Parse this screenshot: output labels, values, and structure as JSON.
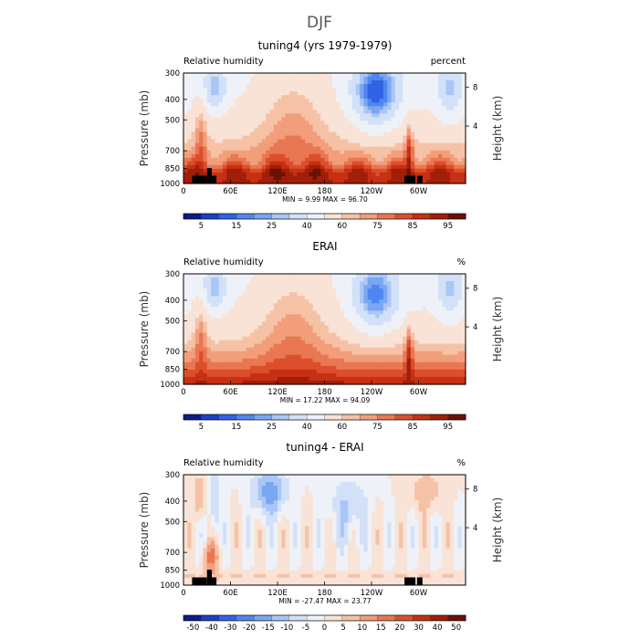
{
  "figure": {
    "title": "DJF"
  },
  "colors": {
    "rh_palette": [
      "#0a1c88",
      "#1d3fc6",
      "#2f63e4",
      "#4f86f0",
      "#7aa6f2",
      "#a9c6f6",
      "#d2e1f8",
      "#eef2f8",
      "#f8e3d6",
      "#f6c2a6",
      "#f29e7b",
      "#e97752",
      "#dc4f2c",
      "#c73012",
      "#a11e08",
      "#6c1003"
    ],
    "diff_palette": [
      "#0a1c88",
      "#1d3fc6",
      "#2f63e4",
      "#4f86f0",
      "#7aa6f2",
      "#a9c6f6",
      "#d2e1f8",
      "#eef2f8",
      "#f8e3d6",
      "#f6c2a6",
      "#f29e7b",
      "#e97752",
      "#dc4f2c",
      "#c73012",
      "#a11e08",
      "#6c1003"
    ],
    "land": "#000000"
  },
  "chart_data": [
    {
      "type": "heatmap",
      "title": "tuning4 (yrs 1979-1979)",
      "left_label": "Relative humidity",
      "right_label": "percent",
      "xlabel": "",
      "ylabel": "Pressure (mb)",
      "y2label": "Height (km)",
      "x_ticks": [
        "0",
        "60E",
        "120E",
        "180",
        "120W",
        "60W"
      ],
      "x_tick_lon": [
        0,
        60,
        120,
        180,
        240,
        300
      ],
      "xlim": [
        0,
        360
      ],
      "y_ticks": [
        300,
        400,
        500,
        700,
        850,
        1000
      ],
      "ylim": [
        1000,
        300
      ],
      "y2_ticks": [
        8,
        4
      ],
      "stats": {
        "min_label": "MIN =",
        "min": "9.99",
        "max_label": "MAX =",
        "max": "96.70"
      },
      "colorbar_ticks": [
        "5",
        "15",
        "25",
        "40",
        "60",
        "75",
        "85",
        "95"
      ],
      "variant": "model"
    },
    {
      "type": "heatmap",
      "title": "ERAI",
      "left_label": "Relative humidity",
      "right_label": "%",
      "xlabel": "",
      "ylabel": "Pressure (mb)",
      "y2label": "Height (km)",
      "x_ticks": [
        "0",
        "60E",
        "120E",
        "180",
        "120W",
        "60W"
      ],
      "x_tick_lon": [
        0,
        60,
        120,
        180,
        240,
        300
      ],
      "xlim": [
        0,
        360
      ],
      "y_ticks": [
        300,
        400,
        500,
        700,
        850,
        1000
      ],
      "ylim": [
        1000,
        300
      ],
      "y2_ticks": [
        8,
        4
      ],
      "stats": {
        "min_label": "MIN =",
        "min": "17.22",
        "max_label": "MAX =",
        "max": "94.09"
      },
      "colorbar_ticks": [
        "5",
        "15",
        "25",
        "40",
        "60",
        "75",
        "85",
        "95"
      ],
      "variant": "obs"
    },
    {
      "type": "heatmap",
      "title": "tuning4 - ERAI",
      "left_label": "Relative humidity",
      "right_label": "%",
      "xlabel": "",
      "ylabel": "Pressure (mb)",
      "y2label": "Height (km)",
      "x_ticks": [
        "0",
        "60E",
        "120E",
        "180",
        "120W",
        "60W"
      ],
      "x_tick_lon": [
        0,
        60,
        120,
        180,
        240,
        300
      ],
      "xlim": [
        0,
        360
      ],
      "y_ticks": [
        300,
        400,
        500,
        700,
        850,
        1000
      ],
      "ylim": [
        1000,
        300
      ],
      "y2_ticks": [
        8,
        4
      ],
      "stats": {
        "min_label": "MIN =",
        "min": "-27.47",
        "max_label": "MAX =",
        "max": "23.77"
      },
      "colorbar_ticks": [
        "-50",
        "-40",
        "-30",
        "-20",
        "-15",
        "-10",
        "-5",
        "0",
        "5",
        "10",
        "15",
        "20",
        "30",
        "40",
        "50"
      ],
      "variant": "diff"
    }
  ]
}
